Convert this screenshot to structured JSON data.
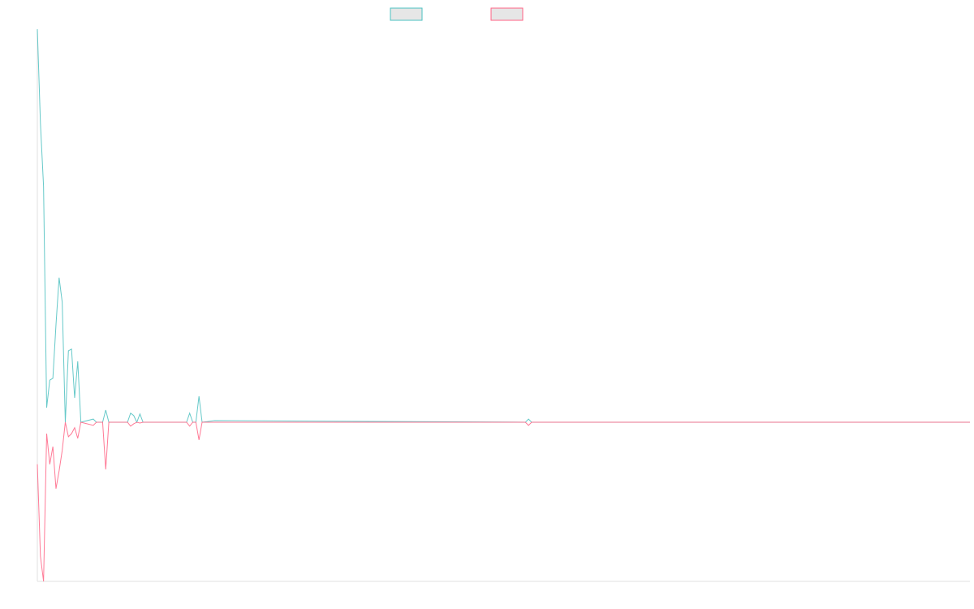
{
  "chart_data": {
    "type": "line",
    "x": [
      0,
      1,
      2,
      3,
      4,
      5,
      6,
      7,
      8,
      9,
      10,
      11,
      12,
      13,
      14,
      18,
      19,
      21,
      22,
      23,
      29,
      30,
      31,
      32,
      33,
      34,
      48,
      49,
      50,
      51,
      52,
      53,
      57,
      157,
      158,
      159,
      300
    ],
    "series": [
      {
        "color": "#4bc0c0",
        "values": [
          100,
          76,
          60,
          3.7,
          10.7,
          11.2,
          24.8,
          36.8,
          30.6,
          0,
          18.2,
          18.6,
          6.2,
          15.5,
          0,
          0.8,
          0,
          0,
          3.1,
          0,
          0,
          2.3,
          1.7,
          0,
          2.1,
          0,
          0,
          2.3,
          0,
          0,
          6.6,
          0,
          0.4,
          0,
          0.8,
          0,
          0
        ]
      },
      {
        "color": "#ff6384",
        "values": [
          -10.7,
          -34.1,
          -40.5,
          -2.9,
          -10.7,
          -6.2,
          -16.9,
          -12.4,
          -7.2,
          0,
          -3.7,
          -2.9,
          -1.4,
          -4.1,
          0,
          -0.8,
          0,
          0,
          -12,
          0,
          0,
          -1,
          -0.4,
          0,
          -0.2,
          0,
          0,
          -1,
          0,
          0,
          -4.5,
          0,
          0,
          0,
          -0.8,
          0,
          0
        ]
      }
    ],
    "xlim": [
      0,
      300
    ],
    "ylim": [
      -40.5,
      100
    ]
  }
}
